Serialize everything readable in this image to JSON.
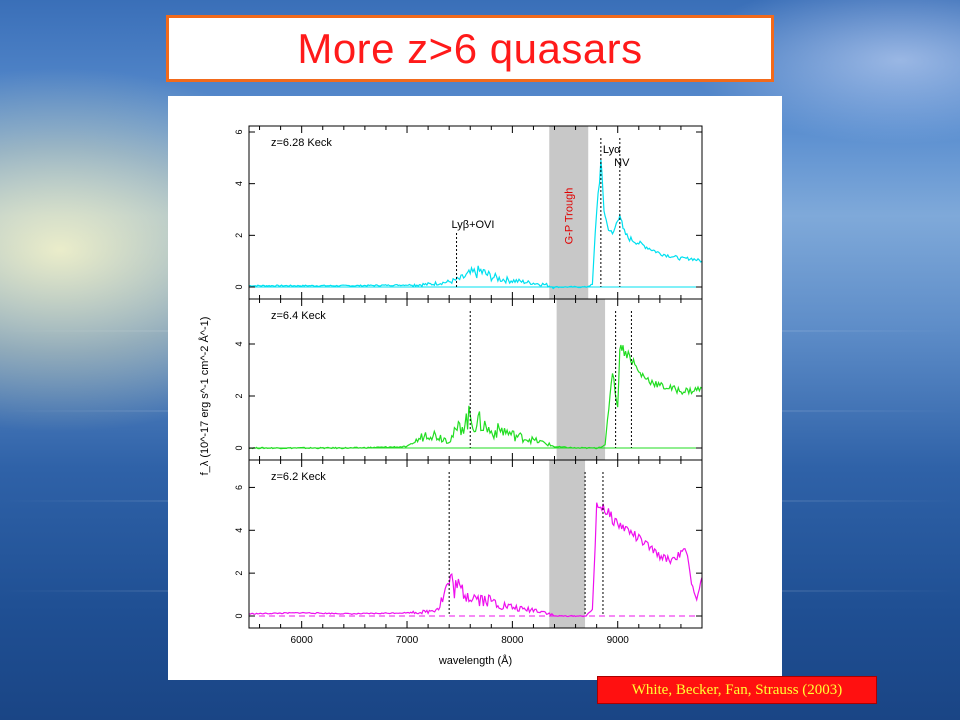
{
  "slide": {
    "title": "More z>6 quasars",
    "citation": "White, Becker, Fan, Strauss (2003)"
  },
  "chart_data": {
    "type": "line",
    "xlabel": "wavelength (Å)",
    "ylabel": "f_λ (10^-17 erg s^-1 cm^-2 Å^-1)",
    "xlim": [
      5500,
      9800
    ],
    "x_ticks": [
      "6000",
      "7000",
      "8000",
      "9000"
    ],
    "panels": [
      {
        "label": "z=6.28  Keck",
        "color": "#00e0f0",
        "ylim": [
          0,
          6
        ],
        "y_ticks": [
          "0",
          "2",
          "4",
          "6"
        ],
        "trough_range": [
          8350,
          8720
        ],
        "trough_label": "G-P Trough",
        "trough_label_color": "#e00000",
        "line_markers": [
          {
            "x": 7470,
            "label": "Lyβ+OVI"
          },
          {
            "x": 8840,
            "label": "Lyα"
          },
          {
            "x": 9020,
            "label": "NV"
          }
        ],
        "x": [
          5500,
          6000,
          6500,
          7000,
          7200,
          7400,
          7500,
          7600,
          7700,
          7800,
          7900,
          8000,
          8100,
          8200,
          8300,
          8400,
          8500,
          8600,
          8700,
          8760,
          8800,
          8840,
          8870,
          8900,
          8950,
          9000,
          9020,
          9050,
          9100,
          9200,
          9300,
          9400,
          9500,
          9600,
          9700,
          9800
        ],
        "y": [
          0.05,
          0.05,
          0.05,
          0.08,
          0.1,
          0.2,
          0.3,
          0.5,
          0.6,
          0.4,
          0.3,
          0.25,
          0.2,
          0.15,
          0.1,
          0.0,
          0.0,
          0.0,
          0.0,
          0.1,
          3.0,
          4.8,
          3.0,
          2.4,
          2.0,
          2.6,
          2.9,
          2.2,
          1.9,
          1.7,
          1.5,
          1.3,
          1.2,
          1.1,
          1.1,
          1.0
        ]
      },
      {
        "label": "z=6.4  Keck",
        "color": "#22dd22",
        "ylim": [
          0,
          5.5
        ],
        "y_ticks": [
          "0",
          "2",
          "4"
        ],
        "trough_range": [
          8420,
          8880
        ],
        "trough_label": "",
        "trough_label_color": "#e00000",
        "line_markers": [
          {
            "x": 7600,
            "label": ""
          },
          {
            "x": 8980,
            "label": ""
          },
          {
            "x": 9130,
            "label": ""
          }
        ],
        "x": [
          5500,
          6000,
          6500,
          7000,
          7100,
          7200,
          7400,
          7500,
          7600,
          7650,
          7700,
          7800,
          7900,
          8000,
          8100,
          8200,
          8300,
          8400,
          8600,
          8800,
          8880,
          8950,
          9000,
          9020,
          9050,
          9100,
          9150,
          9200,
          9300,
          9400,
          9500,
          9600,
          9700,
          9800
        ],
        "y": [
          0.0,
          0.0,
          0.0,
          0.05,
          0.3,
          0.6,
          0.3,
          0.8,
          1.2,
          0.9,
          1.0,
          0.6,
          0.7,
          0.5,
          0.4,
          0.3,
          0.2,
          0.05,
          0.0,
          0.0,
          0.1,
          3.0,
          1.5,
          4.0,
          3.8,
          3.6,
          3.3,
          2.9,
          2.6,
          2.4,
          2.3,
          2.2,
          2.2,
          2.3
        ]
      },
      {
        "label": "z=6.2  Keck",
        "color": "#ee10ee",
        "ylim": [
          0,
          7
        ],
        "y_ticks": [
          "0",
          "2",
          "4",
          "6"
        ],
        "trough_range": [
          8350,
          8690
        ],
        "trough_label": "",
        "trough_label_color": "#e00000",
        "line_markers": [
          {
            "x": 7400,
            "label": ""
          },
          {
            "x": 8690,
            "label": ""
          },
          {
            "x": 8860,
            "label": ""
          }
        ],
        "x": [
          5500,
          6000,
          6500,
          7000,
          7200,
          7300,
          7400,
          7500,
          7600,
          7700,
          7800,
          7900,
          8000,
          8100,
          8200,
          8300,
          8400,
          8600,
          8700,
          8760,
          8800,
          8850,
          8900,
          9000,
          9100,
          9200,
          9300,
          9400,
          9500,
          9600,
          9650,
          9700,
          9750,
          9800
        ],
        "y": [
          0.1,
          0.15,
          0.1,
          0.15,
          0.2,
          0.4,
          1.6,
          1.2,
          1.0,
          0.8,
          0.7,
          0.5,
          0.4,
          0.3,
          0.3,
          0.2,
          0.0,
          0.0,
          0.0,
          0.3,
          5.0,
          5.2,
          4.8,
          4.3,
          4.0,
          3.6,
          3.2,
          2.8,
          2.6,
          2.9,
          3.1,
          1.5,
          0.8,
          1.8
        ]
      }
    ]
  }
}
